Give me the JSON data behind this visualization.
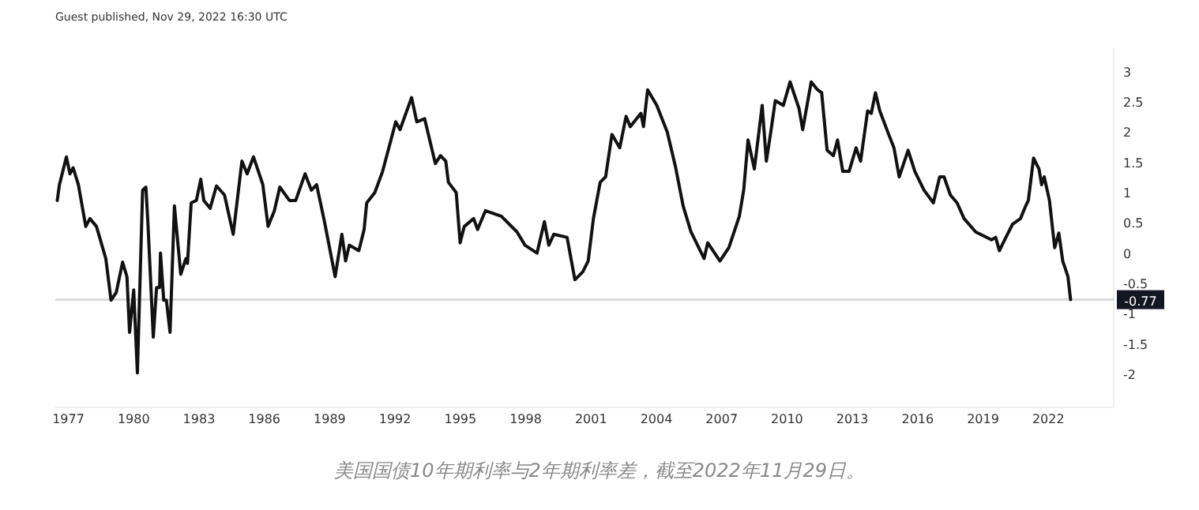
{
  "chart_data": {
    "type": "line",
    "title": "美国国债10年期利率与2年期利率差，截至2022年11月29日。",
    "annotations": [
      "Guest published, Nov 29, 2022 16:30 UTC"
    ],
    "series": [
      {
        "color": "#111111",
        "x": [
          1976.49,
          1976.59,
          1976.91,
          1977.07,
          1977.22,
          1977.46,
          1977.8,
          1977.99,
          1978.29,
          1978.72,
          1978.96,
          1979.2,
          1979.49,
          1979.69,
          1979.81,
          1980.0,
          1980.17,
          1980.41,
          1980.56,
          1980.65,
          1980.9,
          1981.05,
          1981.19,
          1981.23,
          1981.38,
          1981.5,
          1981.67,
          1981.87,
          1982.16,
          1982.4,
          1982.47,
          1982.64,
          1982.88,
          1983.08,
          1983.22,
          1983.51,
          1983.8,
          1984.17,
          1984.57,
          1984.97,
          1985.21,
          1985.5,
          1985.69,
          1985.93,
          1986.17,
          1986.46,
          1986.71,
          1987.15,
          1987.44,
          1987.87,
          1988.16,
          1988.4,
          1988.76,
          1989.25,
          1989.56,
          1989.73,
          1989.9,
          1990.34,
          1990.58,
          1990.7,
          1991.07,
          1991.43,
          1991.91,
          1992.03,
          1992.23,
          1992.76,
          1993.0,
          1993.36,
          1993.85,
          1994.09,
          1994.33,
          1994.45,
          1994.81,
          1994.99,
          1995.18,
          1995.61,
          1995.79,
          1996.15,
          1996.88,
          1997.6,
          1997.97,
          1998.52,
          1998.86,
          1999.06,
          1999.29,
          1999.9,
          2000.26,
          2000.62,
          2000.87,
          2001.11,
          2001.42,
          2001.67,
          2001.96,
          2002.32,
          2002.61,
          2002.8,
          2003.29,
          2003.41,
          2003.6,
          2004.02,
          2004.5,
          2004.87,
          2005.23,
          2005.59,
          2006.19,
          2006.36,
          2006.92,
          2007.33,
          2007.81,
          2008.01,
          2008.21,
          2008.5,
          2008.86,
          2009.05,
          2009.27,
          2009.46,
          2009.83,
          2010.14,
          2010.55,
          2010.72,
          2011.11,
          2011.4,
          2011.59,
          2011.84,
          2012.13,
          2012.32,
          2012.56,
          2012.85,
          2013.17,
          2013.38,
          2013.7,
          2013.87,
          2014.06,
          2014.26,
          2014.67,
          2014.91,
          2015.15,
          2015.56,
          2015.87,
          2016.29,
          2016.72,
          2017.01,
          2017.21,
          2017.5,
          2017.81,
          2018.13,
          2018.66,
          2019.39,
          2019.58,
          2019.75,
          2020.12,
          2020.36,
          2020.72,
          2020.96,
          2021.08,
          2021.32,
          2021.57,
          2021.69,
          2021.81,
          2022.05,
          2022.29,
          2022.48,
          2022.66,
          2022.9,
          2023.02
        ],
        "values": [
          0.87,
          1.13,
          1.59,
          1.31,
          1.41,
          1.13,
          0.44,
          0.57,
          0.44,
          -0.09,
          -0.78,
          -0.65,
          -0.15,
          -0.39,
          -1.31,
          -0.61,
          -1.98,
          1.04,
          1.09,
          0.52,
          -1.39,
          -0.57,
          -0.57,
          0,
          -0.78,
          -0.78,
          -1.31,
          0.78,
          -0.35,
          -0.09,
          -0.17,
          0.83,
          0.87,
          1.22,
          0.87,
          0.74,
          1.11,
          0.96,
          0.31,
          1.52,
          1.31,
          1.59,
          1.39,
          1.13,
          0.44,
          0.7,
          1.09,
          0.87,
          0.87,
          1.31,
          1.04,
          1.13,
          0.52,
          -0.39,
          0.31,
          -0.13,
          0.13,
          0.04,
          0.39,
          0.83,
          1.0,
          1.35,
          2.0,
          2.17,
          2.04,
          2.57,
          2.17,
          2.22,
          1.48,
          1.61,
          1.52,
          1.17,
          1.0,
          0.17,
          0.44,
          0.57,
          0.39,
          0.7,
          0.61,
          0.35,
          0.13,
          0,
          0.52,
          0.13,
          0.31,
          0.26,
          -0.44,
          -0.31,
          -0.13,
          0.57,
          1.17,
          1.26,
          1.96,
          1.74,
          2.26,
          2.09,
          2.31,
          2.09,
          2.7,
          2.44,
          2.0,
          1.44,
          0.78,
          0.35,
          -0.09,
          0.17,
          -0.13,
          0.09,
          0.61,
          1.04,
          1.87,
          1.39,
          2.44,
          1.52,
          2.04,
          2.52,
          2.44,
          2.83,
          2.39,
          2.04,
          2.83,
          2.7,
          2.65,
          1.7,
          1.61,
          1.87,
          1.35,
          1.35,
          1.74,
          1.52,
          2.35,
          2.31,
          2.65,
          2.35,
          1.96,
          1.74,
          1.26,
          1.7,
          1.35,
          1.04,
          0.83,
          1.26,
          1.26,
          0.96,
          0.83,
          0.57,
          0.35,
          0.22,
          0.26,
          0.04,
          0.31,
          0.48,
          0.57,
          0.78,
          0.87,
          1.57,
          1.39,
          1.13,
          1.26,
          0.87,
          0.09,
          0.33,
          -0.13,
          -0.39,
          -0.77
        ]
      }
    ],
    "xlim": [
      1976.4,
      2025
    ],
    "xticks": [
      1977,
      1980,
      1983,
      1986,
      1989,
      1992,
      1995,
      1998,
      2001,
      2004,
      2007,
      2010,
      2013,
      2016,
      2019,
      2022
    ],
    "ylim": [
      -2.55,
      3.4
    ],
    "yticks": [
      3,
      2.5,
      2,
      1.5,
      1,
      0.5,
      0,
      -0.5,
      -1,
      -1.5,
      -2
    ],
    "ref_lines": [
      {
        "axis": "y",
        "value": -0.77,
        "label": "-0.77",
        "color": "#d9d9d9"
      }
    ]
  }
}
